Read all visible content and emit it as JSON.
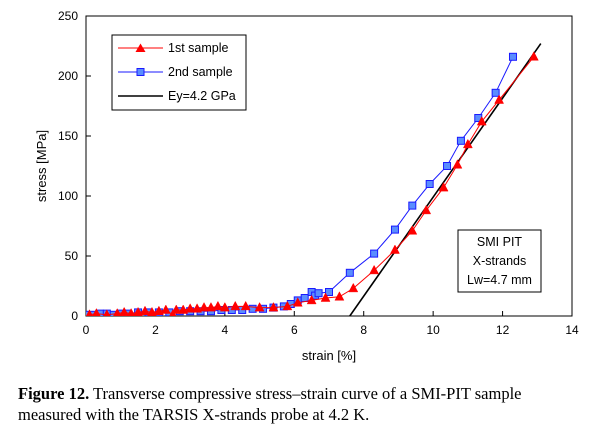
{
  "chart_data": {
    "type": "line",
    "xlabel": "strain [%]",
    "ylabel": "stress [MPa]",
    "xlim": [
      0,
      14
    ],
    "ylim": [
      0,
      250
    ],
    "xticks": [
      0,
      2,
      4,
      6,
      8,
      10,
      12,
      14
    ],
    "yticks": [
      0,
      50,
      100,
      150,
      200,
      250
    ],
    "grid": false,
    "legend_position": "top-left",
    "series": [
      {
        "name": "1st sample",
        "color": "#ff0000",
        "marker": "triangle",
        "points": [
          [
            0.1,
            1
          ],
          [
            0.3,
            2
          ],
          [
            0.6,
            1
          ],
          [
            0.9,
            2
          ],
          [
            1.1,
            3
          ],
          [
            1.3,
            2
          ],
          [
            1.5,
            3
          ],
          [
            1.7,
            4
          ],
          [
            1.9,
            3
          ],
          [
            2.1,
            4
          ],
          [
            2.3,
            5
          ],
          [
            2.5,
            1
          ],
          [
            2.6,
            5
          ],
          [
            2.8,
            5
          ],
          [
            3.0,
            6
          ],
          [
            3.2,
            6
          ],
          [
            3.4,
            7
          ],
          [
            3.6,
            7
          ],
          [
            3.8,
            8
          ],
          [
            4.0,
            7
          ],
          [
            4.3,
            8
          ],
          [
            4.6,
            8
          ],
          [
            5.0,
            7
          ],
          [
            5.4,
            7
          ],
          [
            5.8,
            8
          ],
          [
            6.1,
            11
          ],
          [
            6.5,
            13
          ],
          [
            6.9,
            15
          ],
          [
            7.3,
            16
          ],
          [
            7.7,
            23
          ],
          [
            8.3,
            38
          ],
          [
            8.9,
            55
          ],
          [
            9.4,
            71
          ],
          [
            9.8,
            88
          ],
          [
            10.3,
            107
          ],
          [
            10.7,
            126
          ],
          [
            11.0,
            143
          ],
          [
            11.4,
            162
          ],
          [
            11.9,
            180
          ],
          [
            12.9,
            216
          ]
        ]
      },
      {
        "name": "2nd sample",
        "color": "#1a1aff",
        "marker": "square",
        "points": [
          [
            0.0,
            1
          ],
          [
            0.2,
            1
          ],
          [
            0.4,
            2
          ],
          [
            0.6,
            2
          ],
          [
            0.8,
            1
          ],
          [
            1.0,
            2
          ],
          [
            1.2,
            2
          ],
          [
            1.5,
            3
          ],
          [
            1.8,
            3
          ],
          [
            2.1,
            3
          ],
          [
            2.4,
            3
          ],
          [
            2.7,
            4
          ],
          [
            3.0,
            4
          ],
          [
            3.3,
            4
          ],
          [
            3.6,
            4
          ],
          [
            3.9,
            5
          ],
          [
            4.2,
            5
          ],
          [
            4.5,
            5
          ],
          [
            4.8,
            6
          ],
          [
            5.1,
            6
          ],
          [
            5.4,
            7
          ],
          [
            5.7,
            8
          ],
          [
            5.9,
            10
          ],
          [
            6.1,
            13
          ],
          [
            6.3,
            15
          ],
          [
            6.5,
            20
          ],
          [
            6.6,
            17
          ],
          [
            6.7,
            19
          ],
          [
            7.0,
            20
          ],
          [
            7.6,
            36
          ],
          [
            8.3,
            52
          ],
          [
            8.9,
            72
          ],
          [
            9.4,
            92
          ],
          [
            9.9,
            110
          ],
          [
            10.4,
            125
          ],
          [
            10.8,
            146
          ],
          [
            11.3,
            165
          ],
          [
            11.8,
            186
          ],
          [
            12.3,
            216
          ]
        ]
      },
      {
        "name": "Ey=4.2 GPa",
        "color": "#000000",
        "marker": "none",
        "points": [
          [
            7.6,
            0
          ],
          [
            13.1,
            227
          ]
        ]
      }
    ],
    "annotation": [
      "SMI PIT",
      "X-strands",
      "Lw=4.7 mm"
    ]
  },
  "caption": {
    "label": "Figure 12.",
    "text": " Transverse compressive stress–strain curve of a SMI-PIT sample measured with the TARSIS X-strands probe at 4.2 K."
  }
}
